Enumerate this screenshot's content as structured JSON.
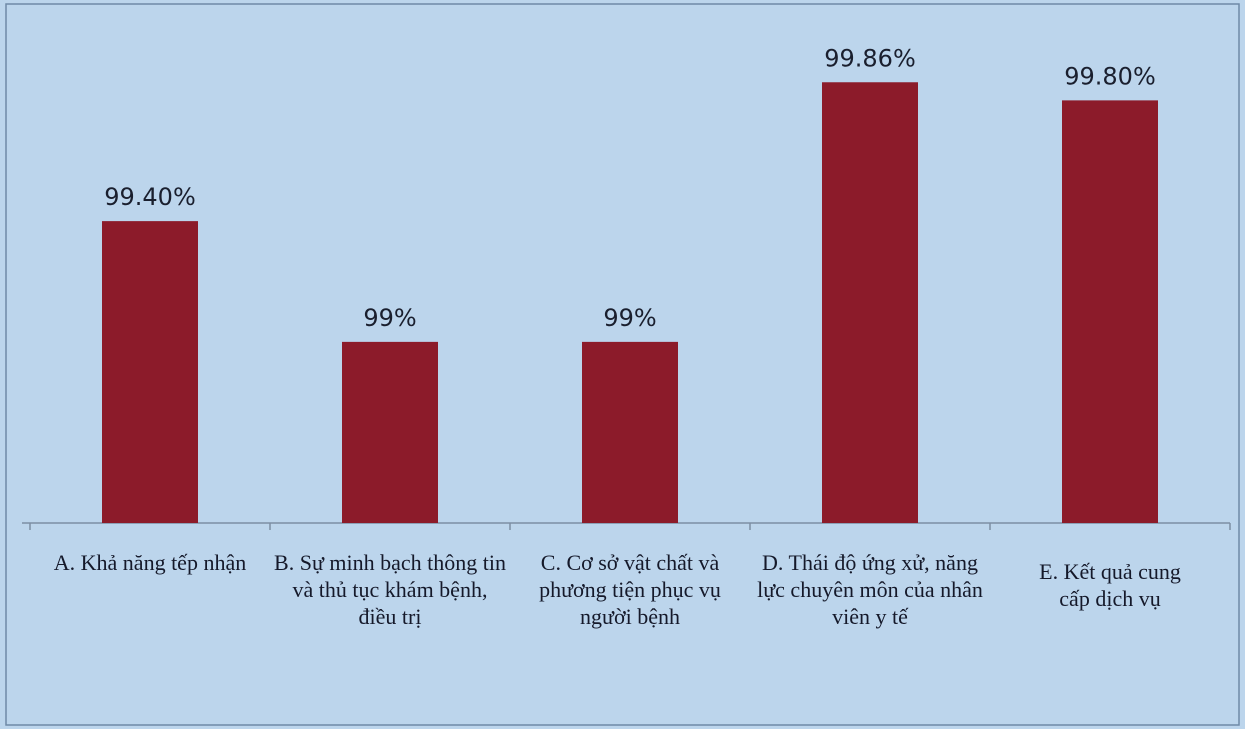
{
  "chart_data": {
    "type": "bar",
    "categories": [
      "A. Khả năng tếp nhận",
      "B. Sự minh bạch thông tin và thủ tục khám bệnh, điều trị",
      "C. Cơ sở vật chất và phương tiện phục vụ người bệnh",
      "D. Thái độ ứng xử, năng lực chuyên môn của nhân viên y tế",
      "E. Kết quả cung cấp dịch vụ"
    ],
    "values": [
      99.4,
      99,
      99,
      99.86,
      99.8
    ],
    "value_labels": [
      "99.40%",
      "99%",
      "99%",
      "99.86%",
      "99.80%"
    ],
    "color": "#8c1b2a",
    "ylim": [
      98.4,
      100
    ]
  }
}
